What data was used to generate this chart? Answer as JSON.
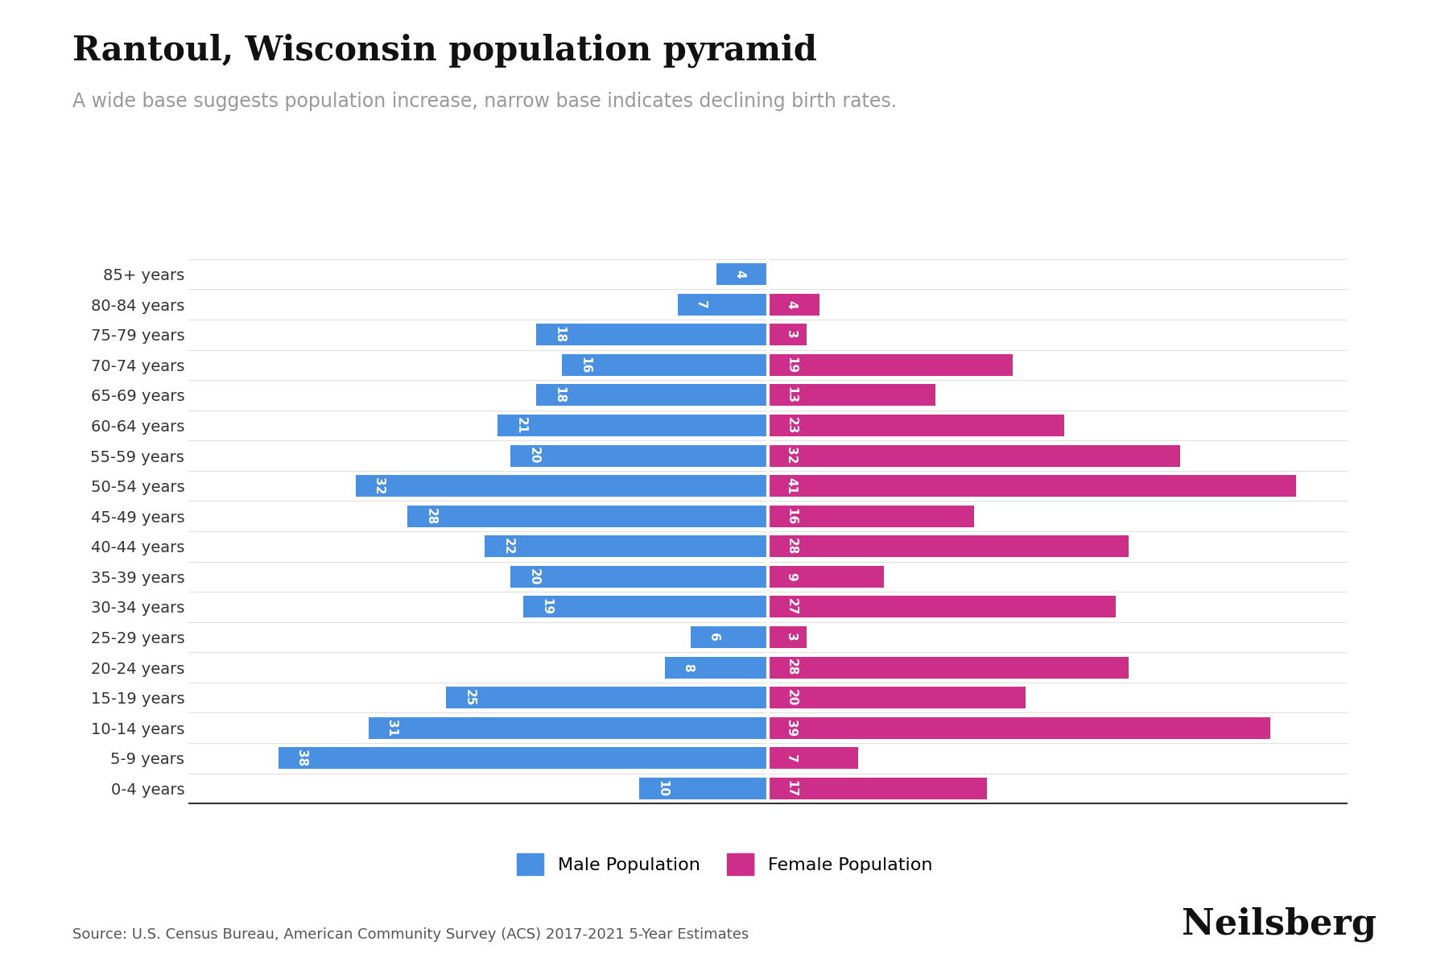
{
  "title": "Rantoul, Wisconsin population pyramid",
  "subtitle": "A wide base suggests population increase, narrow base indicates declining birth rates.",
  "source": "Source: U.S. Census Bureau, American Community Survey (ACS) 2017-2021 5-Year Estimates",
  "branding": "Neilsberg",
  "age_groups": [
    "0-4 years",
    "5-9 years",
    "10-14 years",
    "15-19 years",
    "20-24 years",
    "25-29 years",
    "30-34 years",
    "35-39 years",
    "40-44 years",
    "45-49 years",
    "50-54 years",
    "55-59 years",
    "60-64 years",
    "65-69 years",
    "70-74 years",
    "75-79 years",
    "80-84 years",
    "85+ years"
  ],
  "male": [
    10,
    38,
    31,
    25,
    8,
    6,
    19,
    20,
    22,
    28,
    32,
    20,
    21,
    18,
    16,
    18,
    7,
    4
  ],
  "female": [
    17,
    7,
    39,
    20,
    28,
    3,
    27,
    9,
    28,
    16,
    41,
    32,
    23,
    13,
    19,
    3,
    4,
    0
  ],
  "male_color": "#4A90E2",
  "female_color": "#CC2E8A",
  "background_color": "#ffffff",
  "bar_height": 0.72,
  "xlim": 45,
  "title_fontsize": 30,
  "subtitle_fontsize": 17,
  "tick_fontsize": 14,
  "bar_label_fontsize": 11,
  "legend_fontsize": 16,
  "source_fontsize": 13,
  "branding_fontsize": 32
}
